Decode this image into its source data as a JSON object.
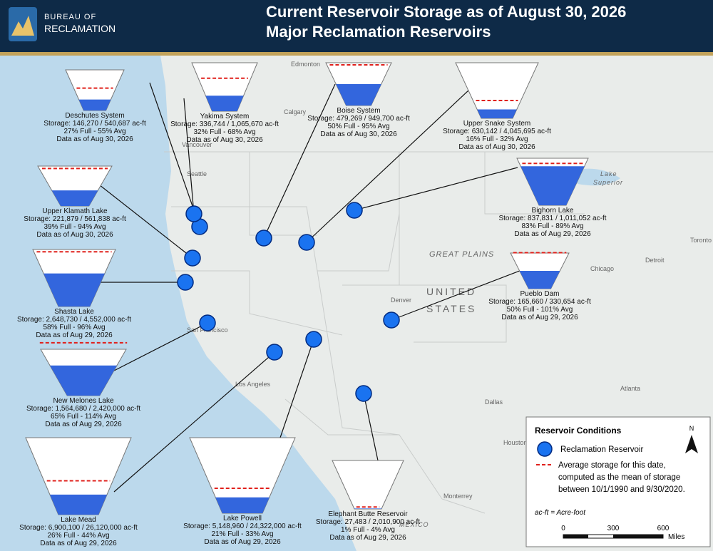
{
  "header": {
    "logo_line1": "BUREAU OF",
    "logo_line2": "RECLAMATION",
    "title": "Current Reservoir Storage as of August 30, 2026",
    "subtitle": "Major Reclamation Reservoirs"
  },
  "reservoirs": [
    {
      "name": "Deschutes System",
      "storage": "Storage: 146,270 / 540,687 ac-ft",
      "status": "27% Full - 55% Avg",
      "date": "Data as of Aug 30, 2026",
      "percent_full": 27,
      "percent_avg": 55
    },
    {
      "name": "Yakima System",
      "storage": "Storage: 336,744 / 1,065,670 ac-ft",
      "status": "32% Full - 68% Avg",
      "date": "Data as of Aug 30, 2026",
      "percent_full": 32,
      "percent_avg": 68
    },
    {
      "name": "Boise System",
      "storage": "Storage: 479,269 / 949,700 ac-ft",
      "status": "50% Full - 95% Avg",
      "date": "Data as of Aug 30, 2026",
      "percent_full": 50,
      "percent_avg": 95
    },
    {
      "name": "Upper Snake System",
      "storage": "Storage: 630,142 / 4,045,695 ac-ft",
      "status": "16% Full - 32% Avg",
      "date": "Data as of Aug 30, 2026",
      "percent_full": 16,
      "percent_avg": 32
    },
    {
      "name": "Upper Klamath Lake",
      "storage": "Storage: 221,879 / 561,838 ac-ft",
      "status": "39% Full - 94% Avg",
      "date": "Data as of Aug 30, 2026",
      "percent_full": 39,
      "percent_avg": 94
    },
    {
      "name": "Bighorn Lake",
      "storage": "Storage: 837,831 / 1,011,052 ac-ft",
      "status": "83% Full - 89% Avg",
      "date": "Data as of Aug 29, 2026",
      "percent_full": 83,
      "percent_avg": 89
    },
    {
      "name": "Shasta Lake",
      "storage": "Storage: 2,648,730 / 4,552,000 ac-ft",
      "status": "58% Full - 96% Avg",
      "date": "Data as of Aug 29, 2026",
      "percent_full": 58,
      "percent_avg": 96
    },
    {
      "name": "Pueblo Dam",
      "storage": "Storage: 165,660 / 330,654 ac-ft",
      "status": "50% Full - 101% Avg",
      "date": "Data as of Aug 29, 2026",
      "percent_full": 50,
      "percent_avg": 101
    },
    {
      "name": "New Melones Lake",
      "storage": "Storage: 1,564,680 / 2,420,000 ac-ft",
      "status": "65% Full - 114% Avg",
      "date": "Data as of Aug 29, 2026",
      "percent_full": 65,
      "percent_avg": 114
    },
    {
      "name": "Lake Mead",
      "storage": "Storage: 6,900,100 / 26,120,000 ac-ft",
      "status": "26% Full - 44% Avg",
      "date": "Data as of Aug 29, 2026",
      "percent_full": 26,
      "percent_avg": 44
    },
    {
      "name": "Lake Powell",
      "storage": "Storage: 5,148,960 / 24,322,000 ac-ft",
      "status": "21% Full - 33% Avg",
      "date": "Data as of Aug 29, 2026",
      "percent_full": 21,
      "percent_avg": 33
    },
    {
      "name": "Elephant Butte Reservoir",
      "storage": "Storage: 27,483 / 2,010,900 ac-ft",
      "status": "1% Full - 4% Avg",
      "date": "Data as of Aug 29, 2026",
      "percent_full": 1,
      "percent_avg": 4
    }
  ],
  "map_labels": [
    "Edmonton",
    "Calgary",
    "Vancouver",
    "Seattle",
    "San Francisco",
    "Los Angeles",
    "Denver",
    "Dallas",
    "Houston",
    "Monterrey",
    "Chicago",
    "Detroit",
    "Toronto",
    "Atlanta",
    "Lake",
    "Superior",
    "GREAT PLAINS",
    "UNITED",
    "STATES",
    "MEXICO"
  ],
  "legend": {
    "title": "Reservoir Conditions",
    "marker_label": "Reclamation Reservoir",
    "avg_lines": [
      "Average storage for this date,",
      "computed as the mean of storage",
      "between 10/1/1990 and 9/30/2020."
    ],
    "unit_note": "ac-ft = Acre-foot",
    "scale_labels": [
      "0",
      "300",
      "600"
    ],
    "scale_unit": "Miles",
    "north": "N"
  }
}
